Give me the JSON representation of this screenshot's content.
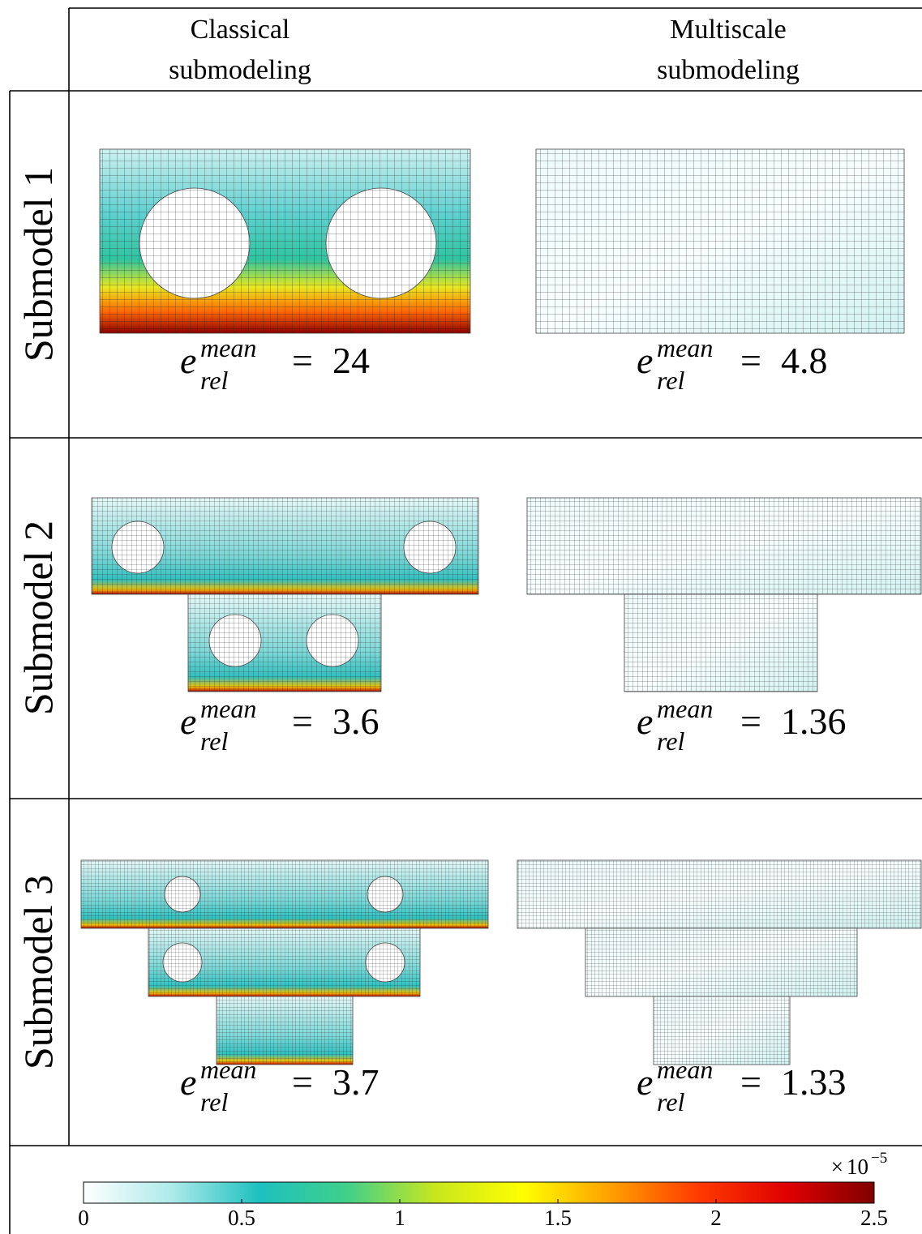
{
  "table": {
    "columns": [
      {
        "lines": [
          "Classical",
          "submodeling"
        ]
      },
      {
        "lines": [
          "Multiscale",
          "submodeling"
        ]
      }
    ],
    "rows": [
      {
        "label": "Submodel 1",
        "errors": [
          24,
          4.8
        ]
      },
      {
        "label": "Submodel 2",
        "errors": [
          3.6,
          1.36
        ]
      },
      {
        "label": "Submodel 3",
        "errors": [
          3.7,
          1.33
        ]
      }
    ]
  },
  "error_label": {
    "symbol": "e",
    "superscript": "mean",
    "subscript": "rel",
    "equals": "="
  },
  "colorbar": {
    "lim": [
      0,
      2.5
    ],
    "ticks": [
      0,
      0.5,
      1,
      1.5,
      2,
      2.5
    ],
    "scale": {
      "times": "×",
      "base": "10",
      "exponent": "−5"
    },
    "colors": [
      "#ffffff",
      "#aeeaea",
      "#1ec0c0",
      "#40d08a",
      "#c8e61e",
      "#ffff00",
      "#ffa000",
      "#ff3a00",
      "#e00000",
      "#800000"
    ]
  }
}
